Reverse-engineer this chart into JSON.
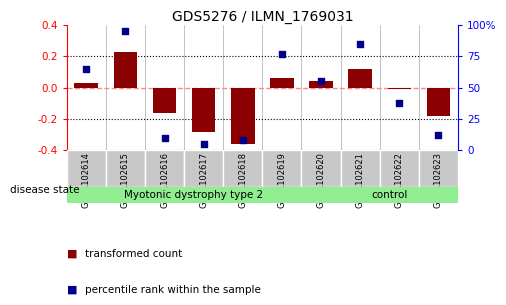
{
  "title": "GDS5276 / ILMN_1769031",
  "samples": [
    "GSM1102614",
    "GSM1102615",
    "GSM1102616",
    "GSM1102617",
    "GSM1102618",
    "GSM1102619",
    "GSM1102620",
    "GSM1102621",
    "GSM1102622",
    "GSM1102623"
  ],
  "transformed_count": [
    0.03,
    0.23,
    -0.16,
    -0.28,
    -0.36,
    0.06,
    0.04,
    0.12,
    -0.01,
    -0.18
  ],
  "percentile_rank": [
    65,
    95,
    10,
    5,
    8,
    77,
    55,
    85,
    38,
    12
  ],
  "disease_groups": [
    {
      "label": "Myotonic dystrophy type 2",
      "start": 0,
      "end": 5,
      "color": "#90EE90"
    },
    {
      "label": "control",
      "start": 6,
      "end": 9,
      "color": "#90EE90"
    }
  ],
  "ylim_left": [
    -0.4,
    0.4
  ],
  "ylim_right": [
    0,
    100
  ],
  "yticks_left": [
    -0.4,
    -0.2,
    0.0,
    0.2,
    0.4
  ],
  "yticks_right": [
    0,
    25,
    50,
    75,
    100
  ],
  "ytick_labels_right": [
    "0",
    "25",
    "50",
    "75",
    "100%"
  ],
  "bar_color": "#8B0000",
  "scatter_color": "#00008B",
  "zero_line_color": "#FF8888",
  "grid_color": "#000000",
  "label_box_color": "#C8C8C8",
  "legend_bar_label": "transformed count",
  "legend_scatter_label": "percentile rank within the sample",
  "disease_label": "disease state"
}
